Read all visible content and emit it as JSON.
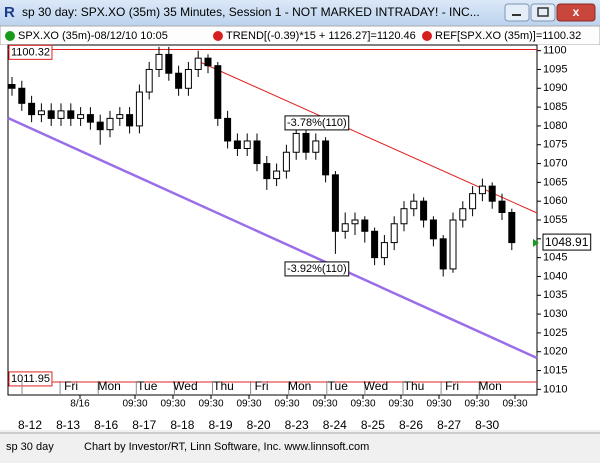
{
  "window": {
    "title": "sp 30 day: SPX.XO (35m) 35 Minutes, Session 1 - NOT MARKED INTRADAY! - INC...",
    "legend": [
      "SPX.XO (35m)-08/12/10 10:05",
      "TREND[(-0.39)*15 + 1126.27]=1120.46",
      "REF[SPX.XO (35m)]=1100.32"
    ],
    "status_left": "sp 30 day",
    "status_right": "Chart by Investor/RT, Linn Software, Inc. www.linnsoft.com"
  },
  "chart_data": {
    "type": "candlestick",
    "open": [
      1091,
      1090,
      1086,
      1083,
      1084,
      1082,
      1084,
      1082,
      1083,
      1081,
      1079,
      1082,
      1083,
      1080,
      1089,
      1095,
      1099,
      1094,
      1090,
      1095,
      1098,
      1096,
      1082,
      1076,
      1074,
      1076,
      1070,
      1066,
      1068,
      1073,
      1078,
      1073,
      1076,
      1067,
      1052,
      1054,
      1055,
      1052,
      1045,
      1049,
      1054,
      1058,
      1060,
      1055,
      1050,
      1042,
      1055,
      1058,
      1062,
      1064,
      1060,
      1057
    ],
    "high": [
      1093,
      1092,
      1088,
      1086,
      1086,
      1086,
      1086,
      1085,
      1085,
      1083,
      1084,
      1085,
      1085,
      1091,
      1097,
      1101,
      1101,
      1096,
      1097,
      1100,
      1099,
      1097,
      1084,
      1078,
      1078,
      1078,
      1072,
      1070,
      1075,
      1080,
      1080,
      1078,
      1077,
      1068,
      1057,
      1057,
      1056,
      1053,
      1051,
      1056,
      1060,
      1062,
      1061,
      1056,
      1051,
      1057,
      1060,
      1064,
      1066,
      1065,
      1062,
      1058
    ],
    "low": [
      1088,
      1084,
      1081,
      1081,
      1080,
      1080,
      1080,
      1080,
      1079,
      1075,
      1077,
      1080,
      1078,
      1078,
      1087,
      1093,
      1092,
      1088,
      1088,
      1093,
      1094,
      1080,
      1074,
      1072,
      1072,
      1068,
      1063,
      1064,
      1066,
      1071,
      1071,
      1071,
      1065,
      1046,
      1050,
      1051,
      1049,
      1043,
      1043,
      1047,
      1052,
      1056,
      1053,
      1048,
      1040,
      1041,
      1053,
      1056,
      1060,
      1058,
      1055,
      1047
    ],
    "close": [
      1090,
      1086,
      1083,
      1084,
      1082,
      1084,
      1082,
      1083,
      1081,
      1079,
      1082,
      1083,
      1080,
      1089,
      1095,
      1099,
      1094,
      1090,
      1095,
      1098,
      1096,
      1082,
      1076,
      1074,
      1076,
      1070,
      1066,
      1068,
      1073,
      1078,
      1073,
      1076,
      1067,
      1052,
      1054,
      1055,
      1052,
      1045,
      1049,
      1054,
      1058,
      1060,
      1055,
      1050,
      1042,
      1055,
      1058,
      1062,
      1064,
      1060,
      1057,
      1049
    ],
    "ylim": [
      1008.5,
      1101.5
    ],
    "yticks": [
      1010,
      1015,
      1020,
      1025,
      1030,
      1035,
      1040,
      1045,
      1050,
      1055,
      1060,
      1065,
      1070,
      1075,
      1080,
      1085,
      1090,
      1095,
      1100
    ],
    "ref_lines": [
      {
        "value": 1100.32,
        "label": "1100.32"
      },
      {
        "value": 1011.95,
        "label": "1011.95"
      }
    ],
    "last_price": {
      "value": 1048.91,
      "label": "1048.91"
    },
    "annotations": [
      "-3.78%(110)",
      "-3.92%(110)"
    ],
    "day_labels": [
      {
        "day": null,
        "date": "8-12"
      },
      {
        "day": "Fri",
        "date": "8-13"
      },
      {
        "day": "Mon",
        "date": "8-16"
      },
      {
        "day": "Tue",
        "date": "8-17"
      },
      {
        "day": "Wed",
        "date": "8-18"
      },
      {
        "day": "Thu",
        "date": "8-19"
      },
      {
        "day": "Fri",
        "date": "8-20"
      },
      {
        "day": "Mon",
        "date": "8-23"
      },
      {
        "day": "Tue",
        "date": "8-24"
      },
      {
        "day": "Wed",
        "date": "8-25"
      },
      {
        "day": "Thu",
        "date": "8-26"
      },
      {
        "day": "Fri",
        "date": "8-27"
      },
      {
        "day": "Mon",
        "date": "8-30"
      }
    ],
    "time_labels": [
      "8/16",
      "09:30",
      "09:30",
      "09:30",
      "09:30",
      "09:30",
      "09:30",
      "09:30",
      "09:30",
      "09:30",
      "09:30",
      "09:30"
    ]
  }
}
